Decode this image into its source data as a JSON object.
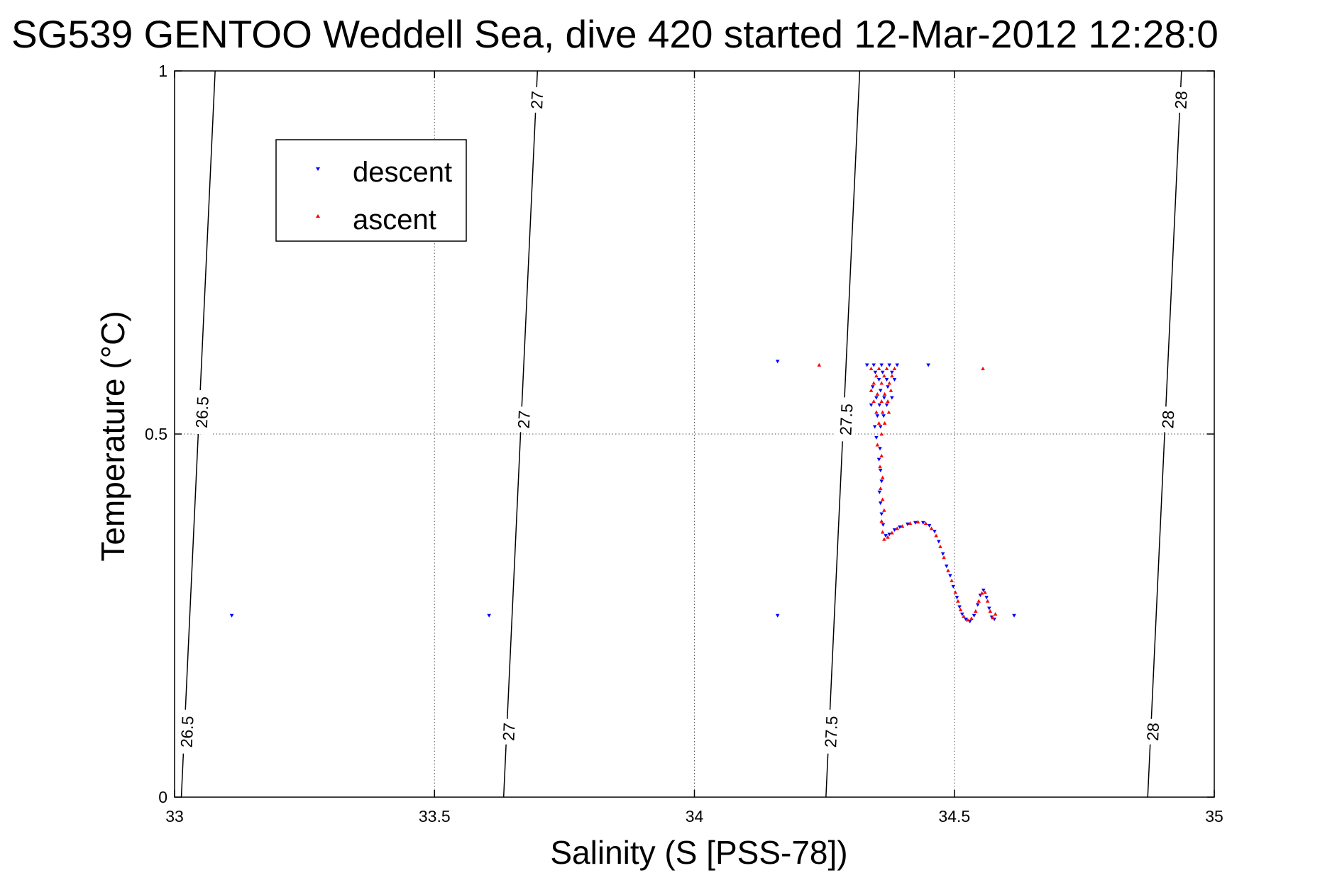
{
  "chart_data": {
    "type": "scatter",
    "title": "SG539 GENTOO Weddell Sea, dive 420 started 12-Mar-2012 12:28:0",
    "xlabel": "Salinity (S [PSS-78])",
    "ylabel": "Temperature (°C)",
    "xlim": [
      33,
      35
    ],
    "ylim": [
      0,
      1
    ],
    "xticks": [
      33,
      33.5,
      34,
      34.5,
      35
    ],
    "xtick_labels": [
      "33",
      "33.5",
      "34",
      "34.5",
      "35"
    ],
    "yticks": [
      0,
      0.5,
      1
    ],
    "ytick_labels": [
      "0",
      "0.5",
      "1"
    ],
    "grid": true,
    "legend_position": "top-left",
    "density_contours": [
      {
        "level": "26.5",
        "bottom": [
          33.013,
          0.0
        ],
        "top": [
          33.078,
          1.0
        ],
        "labels": [
          {
            "text": "26.5",
            "x": 33.024,
            "y": 0.09
          },
          {
            "text": "26.5",
            "x": 33.053,
            "y": 0.53
          }
        ]
      },
      {
        "level": "27",
        "bottom": [
          33.633,
          0.0
        ],
        "top": [
          33.698,
          1.0
        ],
        "labels": [
          {
            "text": "27",
            "x": 33.643,
            "y": 0.09
          },
          {
            "text": "27",
            "x": 33.672,
            "y": 0.52
          },
          {
            "text": "27",
            "x": 33.697,
            "y": 0.96
          }
        ]
      },
      {
        "level": "27.5",
        "bottom": [
          34.253,
          0.0
        ],
        "top": [
          34.318,
          1.0
        ],
        "labels": [
          {
            "text": "27.5",
            "x": 34.263,
            "y": 0.09
          },
          {
            "text": "27.5",
            "x": 34.292,
            "y": 0.52
          }
        ]
      },
      {
        "level": "28",
        "bottom": [
          34.872,
          0.0
        ],
        "top": [
          34.937,
          1.0
        ],
        "labels": [
          {
            "text": "28",
            "x": 34.882,
            "y": 0.09
          },
          {
            "text": "28",
            "x": 34.911,
            "y": 0.52
          },
          {
            "text": "28",
            "x": 34.936,
            "y": 0.96
          }
        ]
      }
    ],
    "series": [
      {
        "name": "descent",
        "color": "#0000ff",
        "marker": "triangle-down",
        "points": [
          [
            33.11,
            0.25
          ],
          [
            33.605,
            0.25
          ],
          [
            34.16,
            0.6
          ],
          [
            34.16,
            0.25
          ],
          [
            34.45,
            0.595
          ],
          [
            34.615,
            0.25
          ],
          [
            34.332,
            0.595
          ],
          [
            34.345,
            0.595
          ],
          [
            34.36,
            0.595
          ],
          [
            34.375,
            0.595
          ],
          [
            34.39,
            0.595
          ],
          [
            34.348,
            0.585
          ],
          [
            34.362,
            0.585
          ],
          [
            34.38,
            0.585
          ],
          [
            34.355,
            0.575
          ],
          [
            34.37,
            0.575
          ],
          [
            34.385,
            0.575
          ],
          [
            34.343,
            0.565
          ],
          [
            34.358,
            0.56
          ],
          [
            34.372,
            0.565
          ],
          [
            34.35,
            0.55
          ],
          [
            34.365,
            0.55
          ],
          [
            34.38,
            0.55
          ],
          [
            34.34,
            0.54
          ],
          [
            34.356,
            0.54
          ],
          [
            34.37,
            0.54
          ],
          [
            34.352,
            0.525
          ],
          [
            34.364,
            0.525
          ],
          [
            34.347,
            0.51
          ],
          [
            34.358,
            0.51
          ],
          [
            34.35,
            0.495
          ],
          [
            34.357,
            0.48
          ],
          [
            34.355,
            0.465
          ],
          [
            34.358,
            0.45
          ],
          [
            34.36,
            0.435
          ],
          [
            34.356,
            0.42
          ],
          [
            34.358,
            0.405
          ],
          [
            34.36,
            0.39
          ],
          [
            34.363,
            0.375
          ],
          [
            34.368,
            0.36
          ],
          [
            34.375,
            0.362
          ],
          [
            34.385,
            0.368
          ],
          [
            34.395,
            0.372
          ],
          [
            34.41,
            0.376
          ],
          [
            34.425,
            0.378
          ],
          [
            34.44,
            0.378
          ],
          [
            34.452,
            0.374
          ],
          [
            34.462,
            0.366
          ],
          [
            34.47,
            0.352
          ],
          [
            34.478,
            0.335
          ],
          [
            34.485,
            0.318
          ],
          [
            34.492,
            0.305
          ],
          [
            34.498,
            0.29
          ],
          [
            34.505,
            0.275
          ],
          [
            34.51,
            0.262
          ],
          [
            34.515,
            0.252
          ],
          [
            34.522,
            0.245
          ],
          [
            34.53,
            0.242
          ],
          [
            34.538,
            0.25
          ],
          [
            34.545,
            0.265
          ],
          [
            34.55,
            0.278
          ],
          [
            34.556,
            0.285
          ],
          [
            34.562,
            0.275
          ],
          [
            34.567,
            0.26
          ],
          [
            34.572,
            0.248
          ],
          [
            34.577,
            0.245
          ]
        ]
      },
      {
        "name": "ascent",
        "color": "#ff0000",
        "marker": "triangle-up",
        "points": [
          [
            34.24,
            0.595
          ],
          [
            34.555,
            0.59
          ],
          [
            34.34,
            0.59
          ],
          [
            34.355,
            0.59
          ],
          [
            34.37,
            0.59
          ],
          [
            34.385,
            0.59
          ],
          [
            34.35,
            0.58
          ],
          [
            34.365,
            0.58
          ],
          [
            34.38,
            0.58
          ],
          [
            34.345,
            0.57
          ],
          [
            34.36,
            0.57
          ],
          [
            34.375,
            0.57
          ],
          [
            34.34,
            0.56
          ],
          [
            34.352,
            0.555
          ],
          [
            34.366,
            0.555
          ],
          [
            34.378,
            0.56
          ],
          [
            34.345,
            0.545
          ],
          [
            34.36,
            0.545
          ],
          [
            34.372,
            0.545
          ],
          [
            34.35,
            0.53
          ],
          [
            34.362,
            0.53
          ],
          [
            34.374,
            0.53
          ],
          [
            34.355,
            0.515
          ],
          [
            34.366,
            0.515
          ],
          [
            34.36,
            0.5
          ],
          [
            34.352,
            0.485
          ],
          [
            34.36,
            0.47
          ],
          [
            34.357,
            0.455
          ],
          [
            34.362,
            0.44
          ],
          [
            34.358,
            0.425
          ],
          [
            34.362,
            0.41
          ],
          [
            34.365,
            0.395
          ],
          [
            34.36,
            0.38
          ],
          [
            34.362,
            0.365
          ],
          [
            34.365,
            0.355
          ],
          [
            34.372,
            0.358
          ],
          [
            34.38,
            0.364
          ],
          [
            34.39,
            0.37
          ],
          [
            34.4,
            0.373
          ],
          [
            34.415,
            0.377
          ],
          [
            34.43,
            0.379
          ],
          [
            34.445,
            0.377
          ],
          [
            34.456,
            0.37
          ],
          [
            34.465,
            0.36
          ],
          [
            34.473,
            0.345
          ],
          [
            34.48,
            0.33
          ],
          [
            34.488,
            0.312
          ],
          [
            34.495,
            0.298
          ],
          [
            34.502,
            0.282
          ],
          [
            34.507,
            0.27
          ],
          [
            34.512,
            0.258
          ],
          [
            34.518,
            0.249
          ],
          [
            34.526,
            0.244
          ],
          [
            34.533,
            0.246
          ],
          [
            34.541,
            0.256
          ],
          [
            34.547,
            0.27
          ],
          [
            34.553,
            0.281
          ],
          [
            34.559,
            0.282
          ],
          [
            34.564,
            0.27
          ],
          [
            34.569,
            0.256
          ],
          [
            34.574,
            0.247
          ],
          [
            34.579,
            0.252
          ]
        ]
      }
    ]
  }
}
